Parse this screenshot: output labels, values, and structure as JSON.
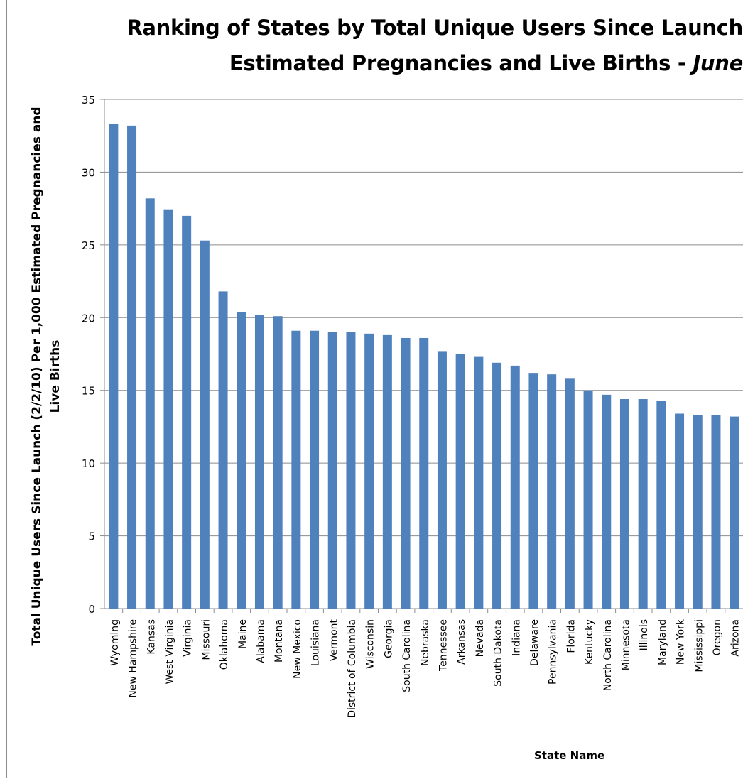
{
  "chart_data": {
    "type": "bar",
    "title_line1": "Ranking of States by Total Unique Users Since Launch",
    "title_line2_prefix": "Estimated Pregnancies and Live Births - ",
    "title_line2_italic": "June",
    "xlabel": "State Name",
    "ylabel": "Total Unique Users Since Launch (2/2/10) Per 1,000 Estimated  Pregnancies and Live Births",
    "ylim": [
      0,
      35
    ],
    "yticks": [
      0,
      5,
      10,
      15,
      20,
      25,
      30,
      35
    ],
    "grid": true,
    "bar_color": "#4f81bd",
    "categories": [
      "Wyoming",
      "New Hampshire",
      "Kansas",
      "West Virginia",
      "Virginia",
      "Missouri",
      "Oklahoma",
      "Maine",
      "Alabama",
      "Montana",
      "New Mexico",
      "Louisiana",
      "Vermont",
      "District of Columbia",
      "Wisconsin",
      "Georgia",
      "South Carolina",
      "Nebraska",
      "Tennessee",
      "Arkansas",
      "Nevada",
      "South Dakota",
      "Indiana",
      "Delaware",
      "Pennsylvania",
      "Florida",
      "Kentucky",
      "North Carolina",
      "Minnesota",
      "Illinois",
      "Maryland",
      "New York",
      "Mississippi",
      "Oregon",
      "Arizona"
    ],
    "values": [
      33.3,
      33.2,
      28.2,
      27.4,
      27.0,
      25.3,
      21.8,
      20.4,
      20.2,
      20.1,
      19.1,
      19.1,
      19.0,
      19.0,
      18.9,
      18.8,
      18.6,
      18.6,
      17.7,
      17.5,
      17.3,
      16.9,
      16.7,
      16.2,
      16.1,
      15.8,
      15.0,
      14.7,
      14.4,
      14.4,
      14.3,
      13.4,
      13.3,
      13.3,
      13.2
    ]
  }
}
